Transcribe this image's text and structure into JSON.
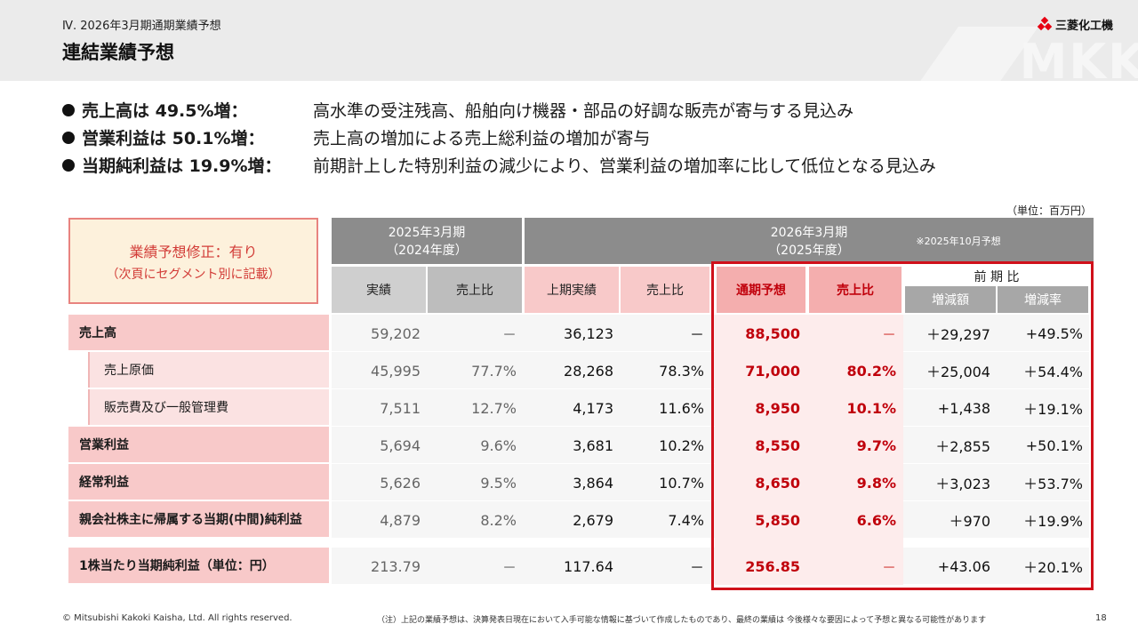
{
  "header": {
    "section": "Ⅳ. 2026年3月期通期業績予想",
    "title": "連結業績予想",
    "logo_text": "三菱化工機",
    "watermark": "MKK"
  },
  "bullets": [
    {
      "head": "売上高は 49.5%増：",
      "desc": "高水準の受注残高、船舶向け機器・部品の好調な販売が寄与する見込み"
    },
    {
      "head": "営業利益は 50.1%増：",
      "desc": "売上高の増加による売上総利益の増加が寄与"
    },
    {
      "head": "当期純利益は 19.9%増：",
      "desc": "前期計上した特別利益の減少により、営業利益の増加率に比して低位となる見込み"
    }
  ],
  "unit": "（単位：百万円）",
  "notice": {
    "title": "業績予想修正：有り",
    "sub": "（次頁にセグメント別に記載）"
  },
  "table": {
    "period_prev": "2025年3月期",
    "period_prev_sub": "（2024年度）",
    "period_cur": "2026年3月期",
    "period_cur_sub": "（2025年度）",
    "forecast_note": "※2025年10月予想",
    "col_actual": "実績",
    "col_ratio_prev": "売上比",
    "col_h1": "上期実績",
    "col_ratio_h1": "売上比",
    "col_forecast": "通期予想",
    "col_ratio_fc": "売上比",
    "col_yoy": "前 期 比",
    "col_diff": "増減額",
    "col_rate": "増減率",
    "rows": [
      {
        "label": "売上高",
        "actual": "59,202",
        "ratio_prev": "－",
        "h1": "36,123",
        "ratio_h1": "－",
        "forecast": "88,500",
        "ratio_fc": "－",
        "diff": "＋29,297",
        "rate": "+49.5%"
      },
      {
        "label": "売上原価",
        "actual": "45,995",
        "ratio_prev": "77.7%",
        "h1": "28,268",
        "ratio_h1": "78.3%",
        "forecast": "71,000",
        "ratio_fc": "80.2%",
        "diff": "＋25,004",
        "rate": "＋54.4%"
      },
      {
        "label": "販売費及び一般管理費",
        "actual": "7,511",
        "ratio_prev": "12.7%",
        "h1": "4,173",
        "ratio_h1": "11.6%",
        "forecast": "8,950",
        "ratio_fc": "10.1%",
        "diff": "+1,438",
        "rate": "＋19.1%"
      },
      {
        "label": "営業利益",
        "actual": "5,694",
        "ratio_prev": "9.6%",
        "h1": "3,681",
        "ratio_h1": "10.2%",
        "forecast": "8,550",
        "ratio_fc": "9.7%",
        "diff": "＋2,855",
        "rate": "+50.1%"
      },
      {
        "label": "経常利益",
        "actual": "5,626",
        "ratio_prev": "9.5%",
        "h1": "3,864",
        "ratio_h1": "10.7%",
        "forecast": "8,650",
        "ratio_fc": "9.8%",
        "diff": "＋3,023",
        "rate": "＋53.7%"
      },
      {
        "label": "親会社株主に帰属する当期(中間)純利益",
        "actual": "4,879",
        "ratio_prev": "8.2%",
        "h1": "2,679",
        "ratio_h1": "7.4%",
        "forecast": "5,850",
        "ratio_fc": "6.6%",
        "diff": "＋970",
        "rate": "＋19.9%"
      },
      {
        "label": "1株当たり当期純利益（単位：円）",
        "actual": "213.79",
        "ratio_prev": "－",
        "h1": "117.64",
        "ratio_h1": "－",
        "forecast": "256.85",
        "ratio_fc": "－",
        "diff": "+43.06",
        "rate": "＋20.1%"
      }
    ]
  },
  "footer": {
    "copyright": "© Mitsubishi Kakoki Kaisha, Ltd. All rights reserved.",
    "note": "（注）上記の業績予想は、決算発表日現在において入手可能な情報に基づいて作成したものであり、最終の業績は 今後様々な要因によって予想と異なる可能性があります",
    "page": "18"
  }
}
